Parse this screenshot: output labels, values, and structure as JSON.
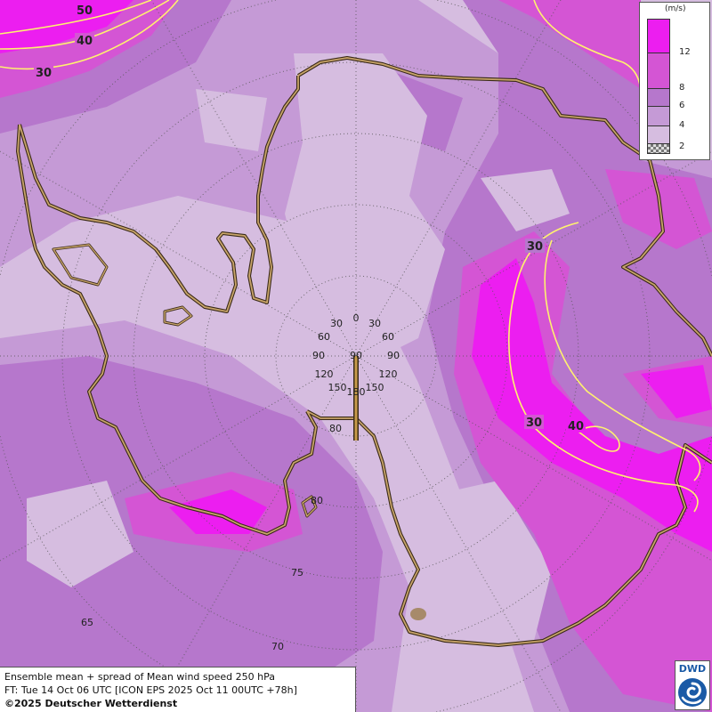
{
  "map": {
    "background_color": "#d6bde0",
    "fill_colors": {
      "lt4": "#d6bde0",
      "4-6": "#c59ad6",
      "6-8": "#b677cc",
      "8-12": "#d455d4",
      "gt12": "#ec1ef0"
    },
    "coastline_color": "#c9a56a",
    "isotach_color": "#fff26e",
    "isotach_label_color": "#ffe840",
    "grid_color": "#555555",
    "pole_marker_color": "#c79a4a"
  },
  "contours": {
    "top_left": [
      "50",
      "40",
      "30"
    ],
    "right": [
      "30",
      "30",
      "40"
    ]
  },
  "longitude_labels": {
    "top": "0",
    "left": [
      "30",
      "60",
      "90",
      "120",
      "150"
    ],
    "right": [
      "30",
      "60",
      "90",
      "120",
      "150"
    ],
    "bottom": "180",
    "center": "90"
  },
  "latitude_labels": [
    "80",
    "80",
    "75",
    "70",
    "65"
  ],
  "legend": {
    "unit": "(m/s)",
    "ticks": [
      "12",
      "8",
      "6",
      "4",
      "2"
    ],
    "colors": [
      "#ec1ef0",
      "#d455d4",
      "#b677cc",
      "#c59ad6",
      "#d6bde0"
    ]
  },
  "info": {
    "line1": "Ensemble mean + spread of Mean wind speed 250 hPa",
    "line2": "FT: Tue 14 Oct 06 UTC [ICON EPS 2025 Oct 11 00UTC +78h]",
    "line3": "©2025 Deutscher Wetterdienst"
  },
  "logo": {
    "text": "DWD",
    "color": "#1a5aa6"
  }
}
